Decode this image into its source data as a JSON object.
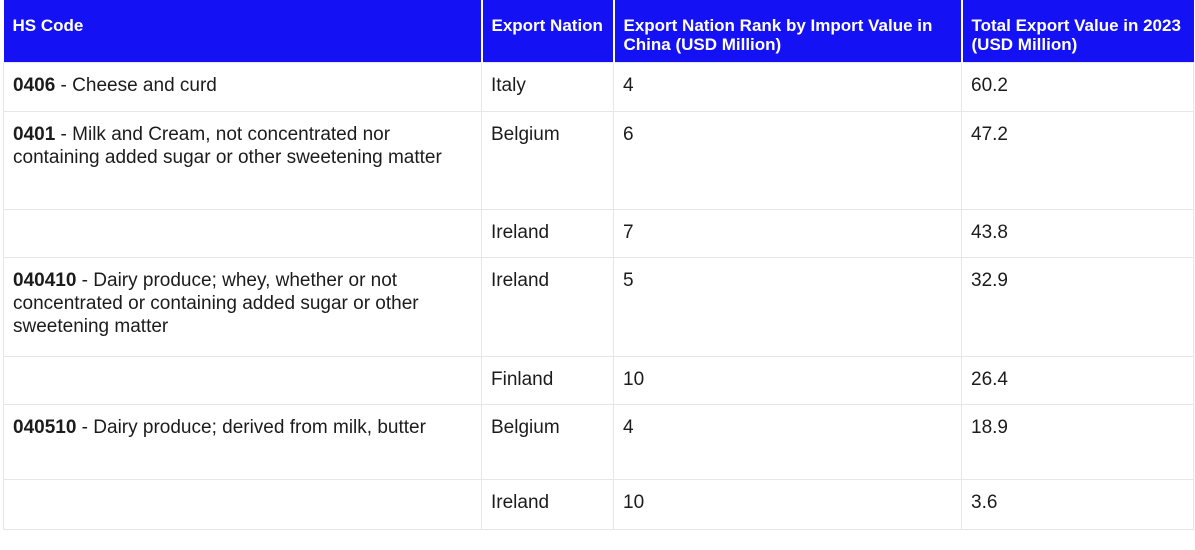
{
  "headers": [
    "HS Code",
    "Export Nation",
    "Export Nation Rank by Import Value in China (USD Million)",
    "Total Export Value in 2023 (USD Million)"
  ],
  "rows": [
    {
      "code": "0406",
      "desc": " - Cheese and curd",
      "nation": "Italy",
      "rank": "4",
      "value": "60.2"
    },
    {
      "code": "0401",
      "desc": " - Milk and Cream, not concentrated nor containing added sugar or other sweetening matter",
      "nation": "Belgium",
      "rank": "6",
      "value": "47.2"
    },
    {
      "code": "",
      "desc": "",
      "nation": "Ireland",
      "rank": "7",
      "value": "43.8"
    },
    {
      "code": "040410",
      "desc": " -  Dairy produce; whey, whether or not concentrated or containing added sugar or other sweetening matter",
      "nation": "Ireland",
      "rank": "5",
      "value": "32.9"
    },
    {
      "code": "",
      "desc": "",
      "nation": "Finland",
      "rank": "10",
      "value": "26.4"
    },
    {
      "code": "040510",
      "desc": " - Dairy produce; derived from milk, butter",
      "nation": "Belgium",
      "rank": "4",
      "value": "18.9"
    },
    {
      "code": "",
      "desc": "",
      "nation": "Ireland",
      "rank": "10",
      "value": "3.6"
    }
  ],
  "colors": {
    "header_bg": "#1412f4",
    "header_text": "#ffffff",
    "border": "#e6e6e6"
  }
}
